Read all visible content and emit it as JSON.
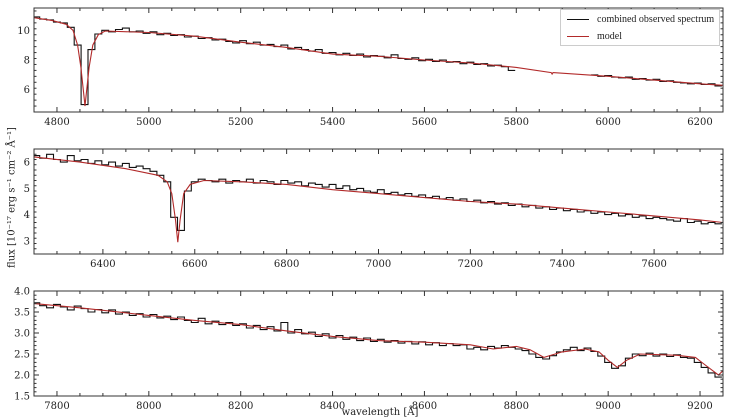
{
  "chart_data": {
    "type": "line",
    "ylabel": "flux [10⁻¹⁷ erg s⁻¹ cm⁻² Å⁻¹]",
    "xlabel": "wavelength [Å]",
    "legend": {
      "placement": "top-right",
      "entries": [
        "combined observed spectrum",
        "model"
      ]
    },
    "colors": {
      "observed": "#111111",
      "model": "#b22a2a"
    },
    "grid": false,
    "panels": [
      {
        "xlim": [
          4750,
          6250
        ],
        "ylim": [
          4.5,
          11.5
        ],
        "xticks": [
          4800,
          5000,
          5200,
          5400,
          5600,
          5800,
          6000,
          6200
        ],
        "yticks": [
          6,
          8,
          10
        ],
        "ytick_labels": [
          "6",
          "8",
          "10"
        ],
        "model": [
          [
            4750,
            10.85
          ],
          [
            4790,
            10.65
          ],
          [
            4820,
            10.4
          ],
          [
            4835,
            10.0
          ],
          [
            4845,
            9.0
          ],
          [
            4852,
            7.5
          ],
          [
            4858,
            5.8
          ],
          [
            4861,
            4.9
          ],
          [
            4864,
            5.8
          ],
          [
            4870,
            7.5
          ],
          [
            4878,
            9.0
          ],
          [
            4890,
            9.7
          ],
          [
            4905,
            9.95
          ],
          [
            5000,
            9.85
          ],
          [
            5100,
            9.6
          ],
          [
            5200,
            9.2
          ],
          [
            5300,
            8.85
          ],
          [
            5400,
            8.4
          ],
          [
            5500,
            8.25
          ],
          [
            5600,
            8.0
          ],
          [
            5700,
            7.8
          ],
          [
            5800,
            7.5
          ],
          [
            5876,
            7.15
          ],
          [
            5878,
            7.05
          ],
          [
            5880,
            7.15
          ],
          [
            6000,
            6.9
          ],
          [
            6100,
            6.65
          ],
          [
            6200,
            6.4
          ],
          [
            6250,
            6.3
          ]
        ],
        "observed": [
          {
            "start": 4755,
            "step": 15,
            "y": [
              10.9,
              10.75,
              10.7,
              10.55,
              10.5,
              10.2,
              9.0,
              5.0,
              8.7,
              9.75,
              10.0,
              9.9,
              10.05,
              10.15,
              9.9,
              9.95,
              9.8,
              9.9,
              9.7,
              9.8,
              9.65,
              9.7,
              9.55,
              9.6,
              9.45,
              9.5,
              9.35,
              9.4,
              9.25,
              9.15,
              9.3,
              9.1,
              9.2,
              9.0,
              9.05,
              8.9,
              9.0,
              8.75,
              8.85,
              8.7,
              8.6,
              8.7,
              8.45,
              8.5,
              8.35,
              8.45,
              8.3,
              8.4,
              8.2,
              8.3,
              8.25,
              8.15,
              8.35,
              8.1,
              8.05,
              8.15,
              7.95,
              8.05,
              7.9,
              8.0,
              7.85,
              7.9,
              7.75,
              7.85,
              7.7,
              7.75,
              7.6,
              7.65,
              7.55,
              7.3
            ]
          },
          {
            "start": 5970,
            "step": 15,
            "y": [
              7.0,
              6.9,
              6.95,
              6.85,
              6.8,
              6.85,
              6.7,
              6.75,
              6.65,
              6.7,
              6.55,
              6.6,
              6.5,
              6.45,
              6.4,
              6.45,
              6.35,
              6.4,
              6.25
            ]
          }
        ]
      },
      {
        "xlim": [
          6250,
          7750
        ],
        "ylim": [
          2.5,
          6.5
        ],
        "xticks": [
          6400,
          6600,
          6800,
          7000,
          7200,
          7400,
          7600
        ],
        "yticks": [
          3,
          4,
          5,
          6
        ],
        "ytick_labels": [
          "3",
          "4",
          "5",
          "6"
        ],
        "model": [
          [
            6250,
            6.2
          ],
          [
            6350,
            6.0
          ],
          [
            6450,
            5.75
          ],
          [
            6520,
            5.5
          ],
          [
            6540,
            5.25
          ],
          [
            6550,
            4.8
          ],
          [
            6558,
            3.8
          ],
          [
            6563,
            2.95
          ],
          [
            6568,
            3.8
          ],
          [
            6576,
            4.8
          ],
          [
            6590,
            5.15
          ],
          [
            6620,
            5.3
          ],
          [
            6700,
            5.25
          ],
          [
            6800,
            5.15
          ],
          [
            6900,
            4.95
          ],
          [
            7000,
            4.8
          ],
          [
            7100,
            4.65
          ],
          [
            7200,
            4.5
          ],
          [
            7300,
            4.4
          ],
          [
            7400,
            4.25
          ],
          [
            7500,
            4.1
          ],
          [
            7600,
            3.95
          ],
          [
            7700,
            3.8
          ],
          [
            7750,
            3.7
          ]
        ],
        "observed": [
          {
            "start": 6255,
            "step": 15,
            "y": [
              6.25,
              6.15,
              6.3,
              6.1,
              6.0,
              6.25,
              6.05,
              6.1,
              5.95,
              6.05,
              5.9,
              6.0,
              5.85,
              5.95,
              5.8,
              5.85,
              5.75,
              5.65,
              5.5,
              5.25,
              3.9,
              3.4,
              4.9,
              5.25,
              5.35,
              5.3,
              5.25,
              5.35,
              5.2,
              5.3,
              5.25,
              5.35,
              5.2,
              5.3,
              5.25,
              5.15,
              5.3,
              5.2,
              5.25,
              5.1,
              5.2,
              5.15,
              5.05,
              5.15,
              5.0,
              5.1,
              4.95,
              5.0,
              4.9,
              4.85,
              4.95,
              4.8,
              4.85,
              4.75,
              4.8,
              4.7,
              4.75,
              4.65,
              4.7,
              4.6,
              4.65,
              4.55,
              4.6,
              4.5,
              4.55,
              4.45,
              4.5,
              4.4,
              4.45,
              4.35,
              4.4,
              4.3,
              4.35,
              4.25,
              4.3,
              4.2,
              4.25,
              4.15,
              4.2,
              4.1,
              4.15,
              4.05,
              4.1,
              4.0,
              4.05,
              3.95,
              4.0,
              3.9,
              3.95,
              3.85,
              3.9,
              3.85,
              3.8,
              3.75,
              3.85,
              3.7,
              3.75,
              3.65,
              3.7,
              3.65
            ]
          }
        ]
      },
      {
        "xlim": [
          7750,
          9250
        ],
        "ylim": [
          1.5,
          4.0
        ],
        "xticks": [
          7800,
          8000,
          8200,
          8400,
          8600,
          8800,
          9000,
          9200
        ],
        "yticks": [
          1.5,
          2.0,
          2.5,
          3.0,
          3.5,
          4.0
        ],
        "ytick_labels": [
          "1.5",
          "2.0",
          "2.5",
          "3.0",
          "3.5",
          "4.0"
        ],
        "model": [
          [
            7750,
            3.7
          ],
          [
            7850,
            3.6
          ],
          [
            8000,
            3.42
          ],
          [
            8100,
            3.3
          ],
          [
            8200,
            3.2
          ],
          [
            8300,
            3.05
          ],
          [
            8400,
            2.92
          ],
          [
            8500,
            2.82
          ],
          [
            8600,
            2.78
          ],
          [
            8700,
            2.72
          ],
          [
            8750,
            2.62
          ],
          [
            8800,
            2.68
          ],
          [
            8830,
            2.6
          ],
          [
            8860,
            2.42
          ],
          [
            8900,
            2.55
          ],
          [
            8950,
            2.62
          ],
          [
            8980,
            2.55
          ],
          [
            9000,
            2.35
          ],
          [
            9020,
            2.18
          ],
          [
            9040,
            2.35
          ],
          [
            9070,
            2.5
          ],
          [
            9150,
            2.47
          ],
          [
            9190,
            2.42
          ],
          [
            9210,
            2.25
          ],
          [
            9240,
            2.0
          ],
          [
            9250,
            2.1
          ]
        ],
        "observed": [
          {
            "start": 7755,
            "step": 15,
            "y": [
              3.72,
              3.65,
              3.6,
              3.68,
              3.62,
              3.55,
              3.64,
              3.58,
              3.5,
              3.56,
              3.48,
              3.55,
              3.45,
              3.5,
              3.42,
              3.46,
              3.38,
              3.44,
              3.36,
              3.4,
              3.32,
              3.38,
              3.3,
              3.25,
              3.35,
              3.22,
              3.28,
              3.2,
              3.25,
              3.18,
              3.22,
              3.12,
              3.18,
              3.08,
              3.15,
              3.05,
              3.25,
              3.0,
              3.08,
              2.98,
              3.02,
              2.92,
              2.98,
              2.88,
              2.94,
              2.85,
              2.9,
              2.82,
              2.88,
              2.8,
              2.85,
              2.78,
              2.82,
              2.76,
              2.8,
              2.74,
              2.79,
              2.72,
              2.77,
              2.7,
              2.75,
              2.7,
              2.72,
              2.62,
              2.66,
              2.6,
              2.68,
              2.64,
              2.7,
              2.66,
              2.62,
              2.58,
              2.5,
              2.42,
              2.38,
              2.46,
              2.55,
              2.6,
              2.66,
              2.58,
              2.64,
              2.56,
              2.45,
              2.3,
              2.16,
              2.22,
              2.4,
              2.5,
              2.46,
              2.52,
              2.45,
              2.5,
              2.44,
              2.48,
              2.42,
              2.4,
              2.3,
              2.18,
              2.05,
              1.95
            ]
          }
        ]
      }
    ]
  }
}
